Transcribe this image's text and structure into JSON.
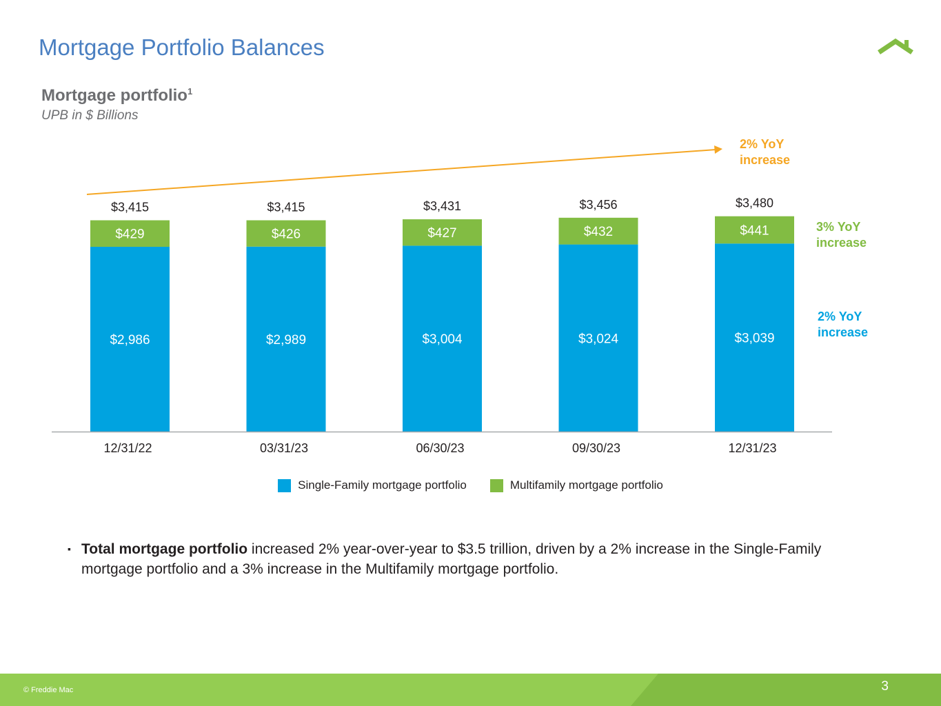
{
  "slide": {
    "title": "Mortgage Portfolio Balances",
    "page_number": "3",
    "copyright": "© Freddie Mac"
  },
  "annotations": {
    "total_yoy": "2% YoY increase",
    "multifamily_yoy": "3% YoY increase",
    "single_family_yoy": "2% YoY increase"
  },
  "bullet": {
    "bold": "Total mortgage portfolio",
    "text": " increased 2% year-over-year to $3.5 trillion, driven by a 2% increase in the Single-Family mortgage portfolio and a 3% increase in the Multifamily mortgage portfolio."
  },
  "colors": {
    "single_family": "#00a3e0",
    "multifamily": "#82bc43",
    "trend": "#f5a623",
    "title": "#4a7fc1"
  },
  "chart_data": {
    "type": "bar",
    "stacked": true,
    "title": "Mortgage portfolio",
    "title_footnote": "1",
    "subtitle": "UPB in $ Billions",
    "categories": [
      "12/31/22",
      "03/31/23",
      "06/30/23",
      "09/30/23",
      "12/31/23"
    ],
    "series": [
      {
        "name": "Single-Family mortgage portfolio",
        "values": [
          2986,
          2989,
          3004,
          3024,
          3039
        ],
        "labels": [
          "$2,986",
          "$2,989",
          "$3,004",
          "$3,024",
          "$3,039"
        ]
      },
      {
        "name": "Multifamily mortgage portfolio",
        "values": [
          429,
          426,
          427,
          432,
          441
        ],
        "labels": [
          "$429",
          "$426",
          "$427",
          "$432",
          "$441"
        ]
      }
    ],
    "totals": [
      3415,
      3415,
      3431,
      3456,
      3480
    ],
    "total_labels": [
      "$3,415",
      "$3,415",
      "$3,431",
      "$3,456",
      "$3,480"
    ],
    "ylim": [
      0,
      3600
    ],
    "legend_position": "bottom"
  }
}
